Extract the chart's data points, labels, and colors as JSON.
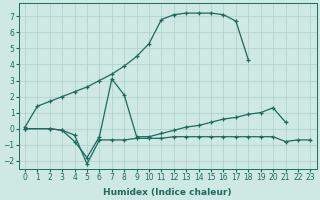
{
  "xlabel": "Humidex (Indice chaleur)",
  "xlim": [
    -0.5,
    23.5
  ],
  "ylim": [
    -2.5,
    7.8
  ],
  "xticks": [
    0,
    1,
    2,
    3,
    4,
    5,
    6,
    7,
    8,
    9,
    10,
    11,
    12,
    13,
    14,
    15,
    16,
    17,
    18,
    19,
    20,
    21,
    22,
    23
  ],
  "yticks": [
    -2,
    -1,
    0,
    1,
    2,
    3,
    4,
    5,
    6,
    7
  ],
  "bg_color": "#cee8e4",
  "line_color": "#1a6b5e",
  "grid_color": "#aecfca",
  "line1_x": [
    0,
    1,
    2,
    3,
    4,
    5,
    6,
    7,
    8,
    9,
    10,
    11,
    12,
    13,
    14,
    15,
    16,
    17,
    18
  ],
  "line1_y": [
    0.1,
    1.4,
    1.7,
    2.0,
    2.3,
    2.6,
    3.0,
    3.4,
    3.9,
    4.5,
    5.3,
    6.8,
    7.1,
    7.2,
    7.2,
    7.2,
    7.1,
    6.7,
    4.3
  ],
  "line2_x": [
    0,
    2,
    3,
    4,
    5,
    6,
    7,
    8,
    9,
    10,
    11,
    12,
    13,
    14,
    15,
    16,
    17,
    18,
    19,
    20,
    21
  ],
  "line2_y": [
    0.0,
    0.0,
    -0.1,
    -0.8,
    -1.8,
    -0.5,
    3.1,
    2.1,
    -0.5,
    -0.5,
    -0.3,
    -0.1,
    0.1,
    0.2,
    0.4,
    0.6,
    0.7,
    0.9,
    1.0,
    1.3,
    0.4
  ],
  "line3_x": [
    0,
    2,
    3,
    4,
    5,
    6,
    7,
    8,
    9,
    10,
    11,
    12,
    13,
    14,
    15,
    16,
    17,
    18,
    19,
    20,
    21,
    22,
    23
  ],
  "line3_y": [
    0.0,
    0.0,
    -0.1,
    -0.4,
    -2.2,
    -0.7,
    -0.7,
    -0.7,
    -0.6,
    -0.6,
    -0.6,
    -0.5,
    -0.5,
    -0.5,
    -0.5,
    -0.5,
    -0.5,
    -0.5,
    -0.5,
    -0.5,
    -0.8,
    -0.7,
    -0.7
  ]
}
